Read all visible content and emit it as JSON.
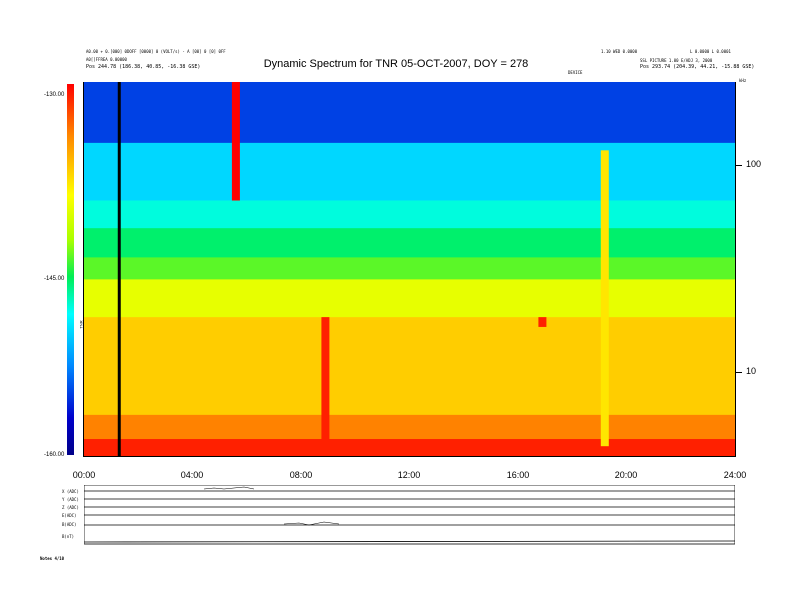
{
  "header": {
    "left_line1": "A0.00 + 0.[000] 0DOFF [0000] 0 (VOLT/s) - A [00] 0 [0] 0FF",
    "left_line2": "A0[]FFREA 0.00000",
    "left_line3": "Pos    244.78 (186.38, 40.85, -16.38 GSE)",
    "right_top1": "1.10 WED 0.0000",
    "right_top2": "L 0.0000   L 0.0001",
    "right_line2": "SSL PICTURE 1.00 E/ADJ 3, 2000",
    "right_line3": "Pos    293.74 (204.39, 44.21, -15.88 GSE)",
    "right_small": "DEVICE"
  },
  "chart_data": {
    "type": "heatmap",
    "title": "Dynamic Spectrum for TNR 05-OCT-2007, DOY = 278",
    "x_ticks": [
      "00:00",
      "04:00",
      "08:00",
      "12:00",
      "16:00",
      "20:00",
      "24:00"
    ],
    "xlim": [
      0,
      24
    ],
    "y_axis_scale": "log",
    "y_ticks": [
      "100",
      "10"
    ],
    "y_tick_values": [
      100,
      10
    ],
    "ylim": [
      4.5,
      250
    ],
    "y_unit_label": "kHz",
    "colorbar": {
      "label": "TNR",
      "ticks": [
        "-130.00",
        "-145.00",
        "-160.00"
      ],
      "tick_values": [
        -130,
        -145,
        -160
      ],
      "range": [
        -160,
        -130
      ]
    },
    "bands": [
      {
        "y_from": 250,
        "y_to": 130,
        "level": -155
      },
      {
        "y_from": 130,
        "y_to": 70,
        "level": -150
      },
      {
        "y_from": 70,
        "y_to": 52,
        "level": -148
      },
      {
        "y_from": 52,
        "y_to": 38,
        "level": -146
      },
      {
        "y_from": 38,
        "y_to": 30,
        "level": -144
      },
      {
        "y_from": 30,
        "y_to": 20,
        "level": -140
      },
      {
        "y_from": 20,
        "y_to": 7,
        "level": -137
      },
      {
        "y_from": 7,
        "y_to": 5.4,
        "level": -134
      },
      {
        "y_from": 5.4,
        "y_to": 4.5,
        "level": -131
      }
    ],
    "events": [
      {
        "t": 1.3,
        "f_from": 4.5,
        "f_to": 250,
        "kind": "data-gap"
      },
      {
        "t": 5.6,
        "f_from": 70,
        "f_to": 250,
        "level": -130
      },
      {
        "t": 8.9,
        "f_from": 5,
        "f_to": 20,
        "level": -131
      },
      {
        "t": 16.9,
        "f_from": 18,
        "f_to": 20,
        "level": -131
      },
      {
        "t": 19.2,
        "f_from": 5,
        "f_to": 120,
        "level": -138
      }
    ]
  },
  "lower_panel": {
    "row_labels": [
      "B(nT)",
      "X (ADC)",
      "Y (ADC)",
      "Z (ADC)",
      "E(ADC)",
      "B(ADC)"
    ],
    "bottom_left": "Notes   4/10"
  }
}
